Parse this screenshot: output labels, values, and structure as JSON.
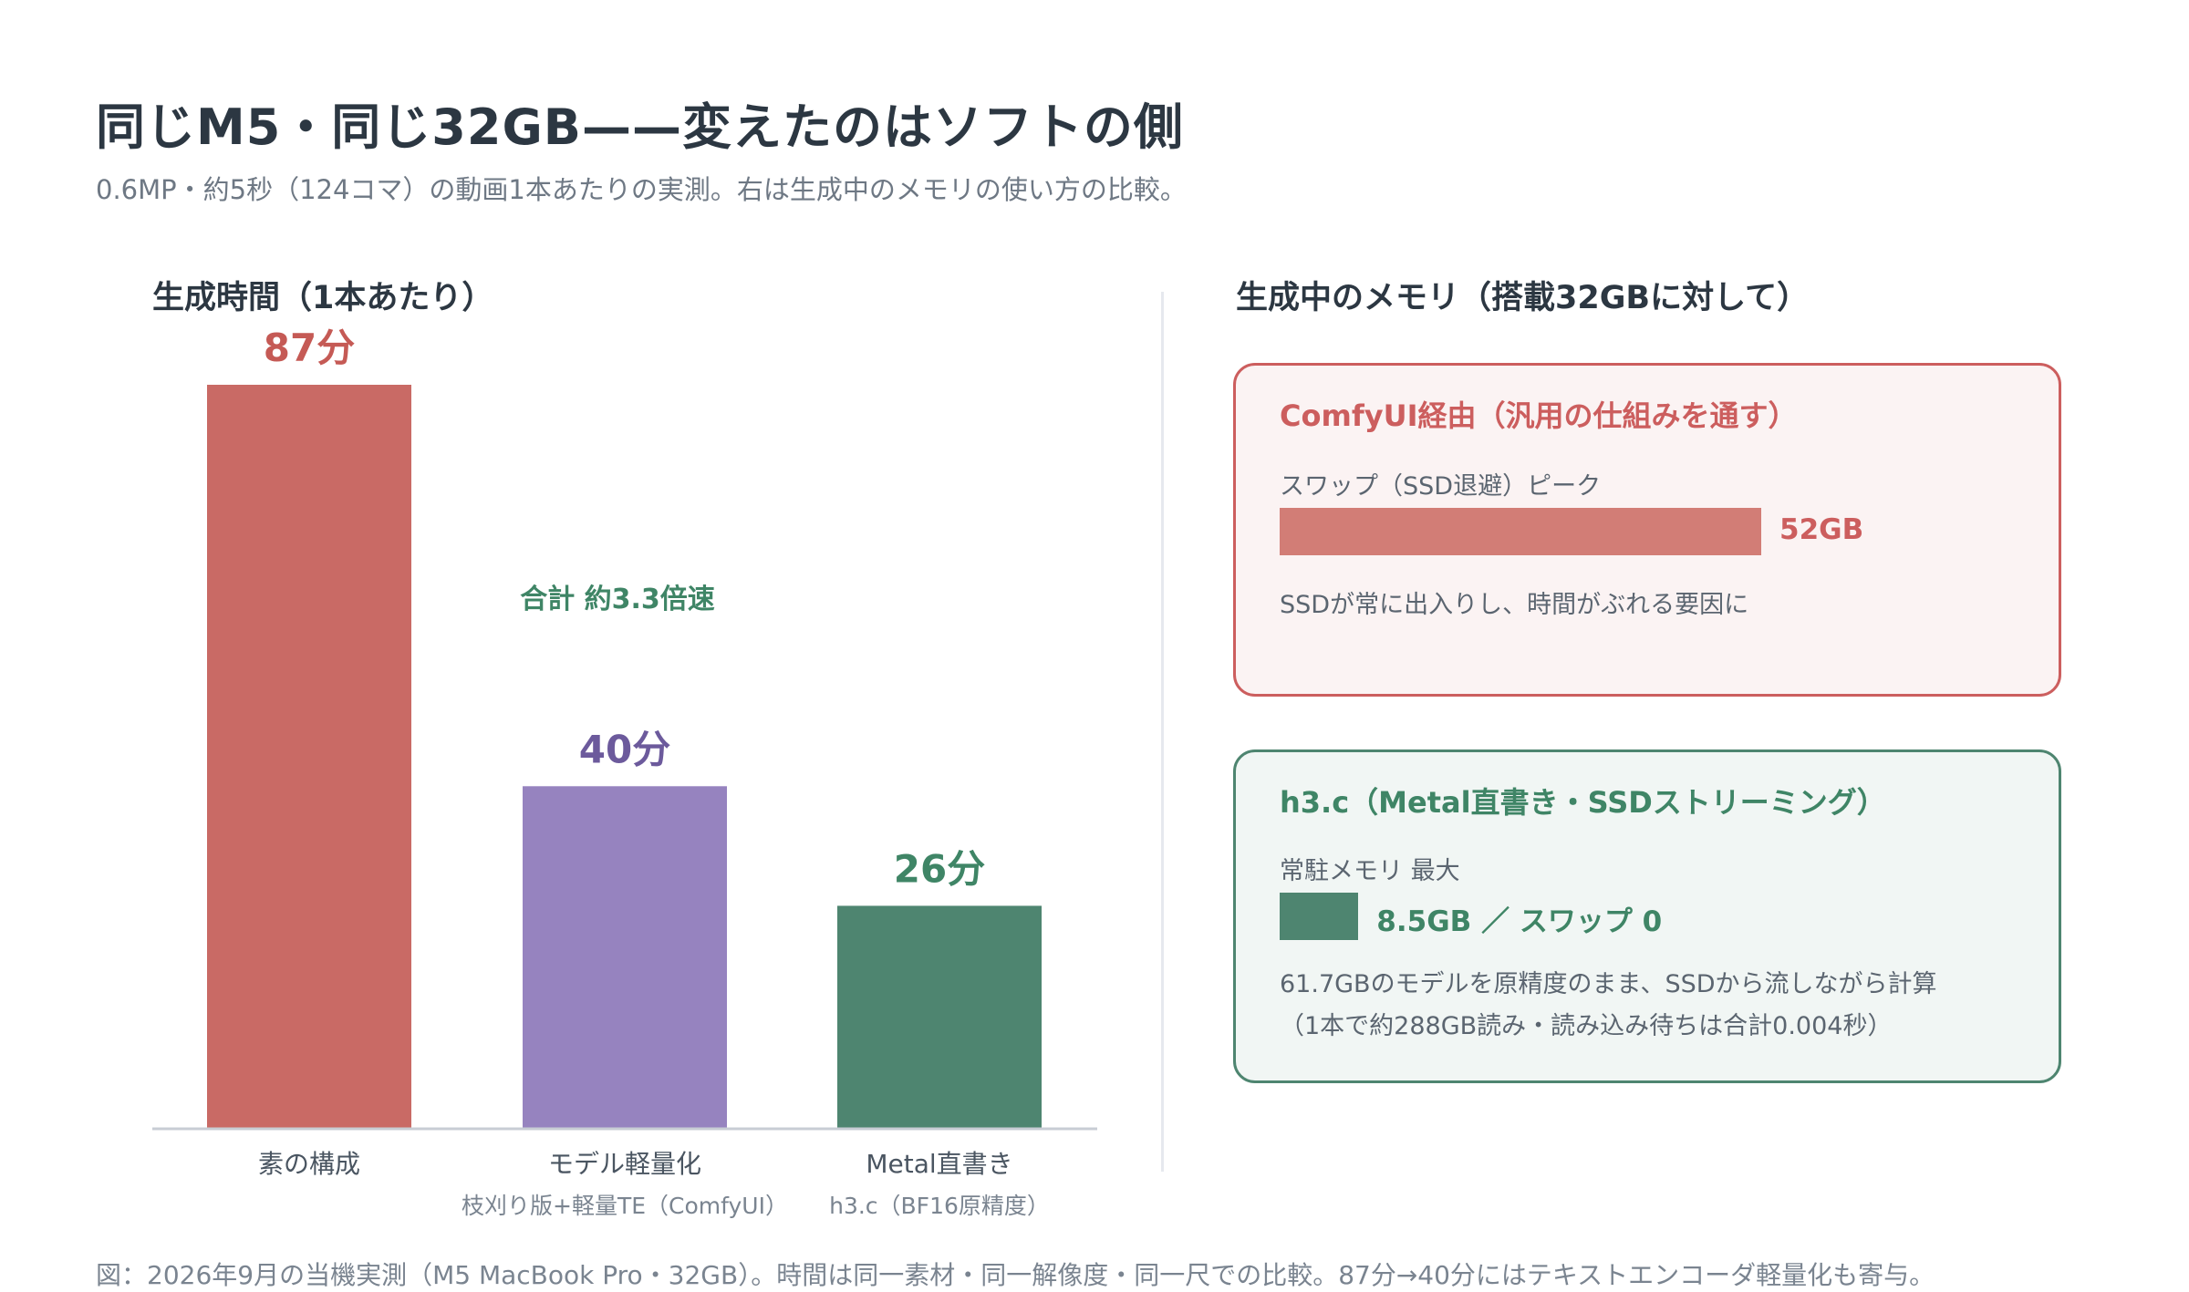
{
  "header": {
    "title": "同じM5・同じ32GB——変えたのはソフトの側",
    "subtitle": "0.6MP・約5秒（124コマ）の動画1本あたりの実測。右は生成中のメモリの使い方の比較。"
  },
  "chart_data": {
    "type": "bar",
    "title": "生成時間（1本あたり）",
    "categories": [
      "素の構成",
      "モデル軽量化",
      "Metal直書き"
    ],
    "sublabels": [
      "",
      "枝刈り版+軽量TE（ComfyUI）",
      "h3.c（BF16原精度）"
    ],
    "values": [
      87,
      40,
      26
    ],
    "value_labels": [
      "87分",
      "40分",
      "26分"
    ],
    "colors": [
      "#c96a65",
      "#9683bf",
      "#4e8570"
    ],
    "label_colors": [
      "#c55a55",
      "#6c5a9c",
      "#3f8566"
    ],
    "ylim": [
      0,
      87
    ],
    "annotation": "合計 約3.3倍速",
    "annotation_color": "#3f8566",
    "grid": false,
    "legend": "none"
  },
  "memory": {
    "title": "生成中のメモリ（搭載32GBに対して）",
    "total_gb": 32,
    "comfy": {
      "title": "ComfyUI経由（汎用の仕組みを通す）",
      "label": "スワップ（SSD退避）ピーク",
      "value_gb": 52,
      "value_label": "52GB",
      "note": "SSDが常に出入りし、時間がぶれる要因に",
      "color": "#cc5e5e",
      "bar_color": "#d27d76"
    },
    "h3c": {
      "title": "h3.c（Metal直書き・SSDストリーミング）",
      "label": "常駐メモリ 最大",
      "value_gb": 8.5,
      "value_label": "8.5GB ／ スワップ 0",
      "note1": "61.7GBのモデルを原精度のまま、SSDから流しながら計算",
      "note2": "（1本で約288GB読み・読み込み待ちは合計0.004秒）",
      "color": "#3f8566",
      "bar_color": "#4e8570"
    }
  },
  "footnote": "図：2026年9月の当機実測（M5 MacBook Pro・32GB）。時間は同一素材・同一解像度・同一尺での比較。87分→40分にはテキストエンコーダ軽量化も寄与。"
}
